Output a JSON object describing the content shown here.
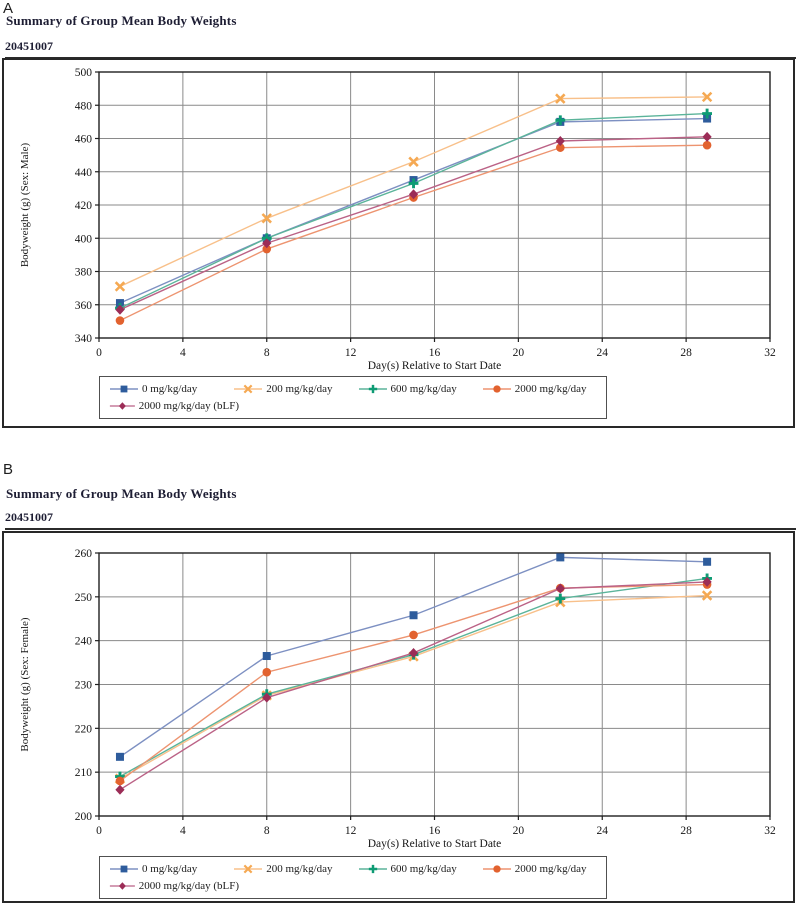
{
  "panels": [
    {
      "label": "A",
      "title": "Summary of Group Mean Body Weights",
      "study_number": "20451007"
    },
    {
      "label": "B",
      "title": "Summary of Group Mean Body Weights",
      "study_number": "20451007"
    }
  ],
  "chart_data": [
    {
      "type": "line",
      "panel": "A",
      "title": "Summary of Group Mean Body Weights",
      "subtitle": "20451007",
      "xlabel": "Day(s) Relative to Start Date",
      "ylabel": "Bodyweight (g) (Sex: Male)",
      "xlim": [
        0,
        32
      ],
      "ylim": [
        340,
        500
      ],
      "xticks": [
        0,
        4,
        8,
        12,
        16,
        20,
        24,
        28,
        32
      ],
      "yticks": [
        340,
        360,
        380,
        400,
        420,
        440,
        460,
        480,
        500
      ],
      "grid": true,
      "legend_position": "bottom",
      "x": [
        1,
        8,
        15,
        22,
        29
      ],
      "series": [
        {
          "name": "0 mg/kg/day",
          "marker": "square",
          "color": "#2E5C9C",
          "line_color": "#7D90C2",
          "values": [
            361,
            400,
            435,
            470,
            472
          ]
        },
        {
          "name": "200 mg/kg/day",
          "marker": "x-star",
          "color": "#F5A953",
          "line_color": "#F8C08A",
          "values": [
            371,
            412,
            446,
            484,
            485
          ]
        },
        {
          "name": "600 mg/kg/day",
          "marker": "plus",
          "color": "#0E9B74",
          "line_color": "#5BB49A",
          "values": [
            358,
            400,
            433,
            471,
            475
          ]
        },
        {
          "name": "2000 mg/kg/day",
          "marker": "circle",
          "color": "#E2622F",
          "line_color": "#ED9470",
          "values": [
            350.5,
            393.5,
            424.5,
            454.5,
            456
          ]
        },
        {
          "name": "2000 mg/kg/day (bLF)",
          "marker": "diamond",
          "color": "#9C2D57",
          "line_color": "#BB6286",
          "values": [
            357,
            397,
            426.5,
            458.5,
            461
          ]
        }
      ]
    },
    {
      "type": "line",
      "panel": "B",
      "title": "Summary of Group Mean Body Weights",
      "subtitle": "20451007",
      "xlabel": "Day(s) Relative to Start Date",
      "ylabel": "Bodyweight (g) (Sex: Female)",
      "xlim": [
        0,
        32
      ],
      "ylim": [
        200,
        260
      ],
      "xticks": [
        0,
        4,
        8,
        12,
        16,
        20,
        24,
        28,
        32
      ],
      "yticks": [
        200,
        210,
        220,
        230,
        240,
        250,
        260
      ],
      "grid": true,
      "legend_position": "bottom",
      "x": [
        1,
        8,
        15,
        22,
        29
      ],
      "series": [
        {
          "name": "0 mg/kg/day",
          "marker": "square",
          "color": "#2E5C9C",
          "line_color": "#7D90C2",
          "values": [
            213.5,
            236.5,
            245.8,
            259,
            258
          ]
        },
        {
          "name": "200 mg/kg/day",
          "marker": "x-star",
          "color": "#F5A953",
          "line_color": "#F8C08A",
          "values": [
            208.5,
            227.5,
            236.4,
            248.8,
            250.3
          ]
        },
        {
          "name": "600 mg/kg/day",
          "marker": "plus",
          "color": "#0E9B74",
          "line_color": "#5BB49A",
          "values": [
            209,
            227.8,
            236.8,
            249.6,
            254.2
          ]
        },
        {
          "name": "2000 mg/kg/day",
          "marker": "circle",
          "color": "#E2622F",
          "line_color": "#ED9470",
          "values": [
            208,
            232.8,
            241.3,
            252,
            252.8
          ]
        },
        {
          "name": "2000 mg/kg/day (bLF)",
          "marker": "diamond",
          "color": "#9C2D57",
          "line_color": "#BB6286",
          "values": [
            206,
            227,
            237.2,
            251.9,
            253.4
          ]
        }
      ]
    }
  ]
}
